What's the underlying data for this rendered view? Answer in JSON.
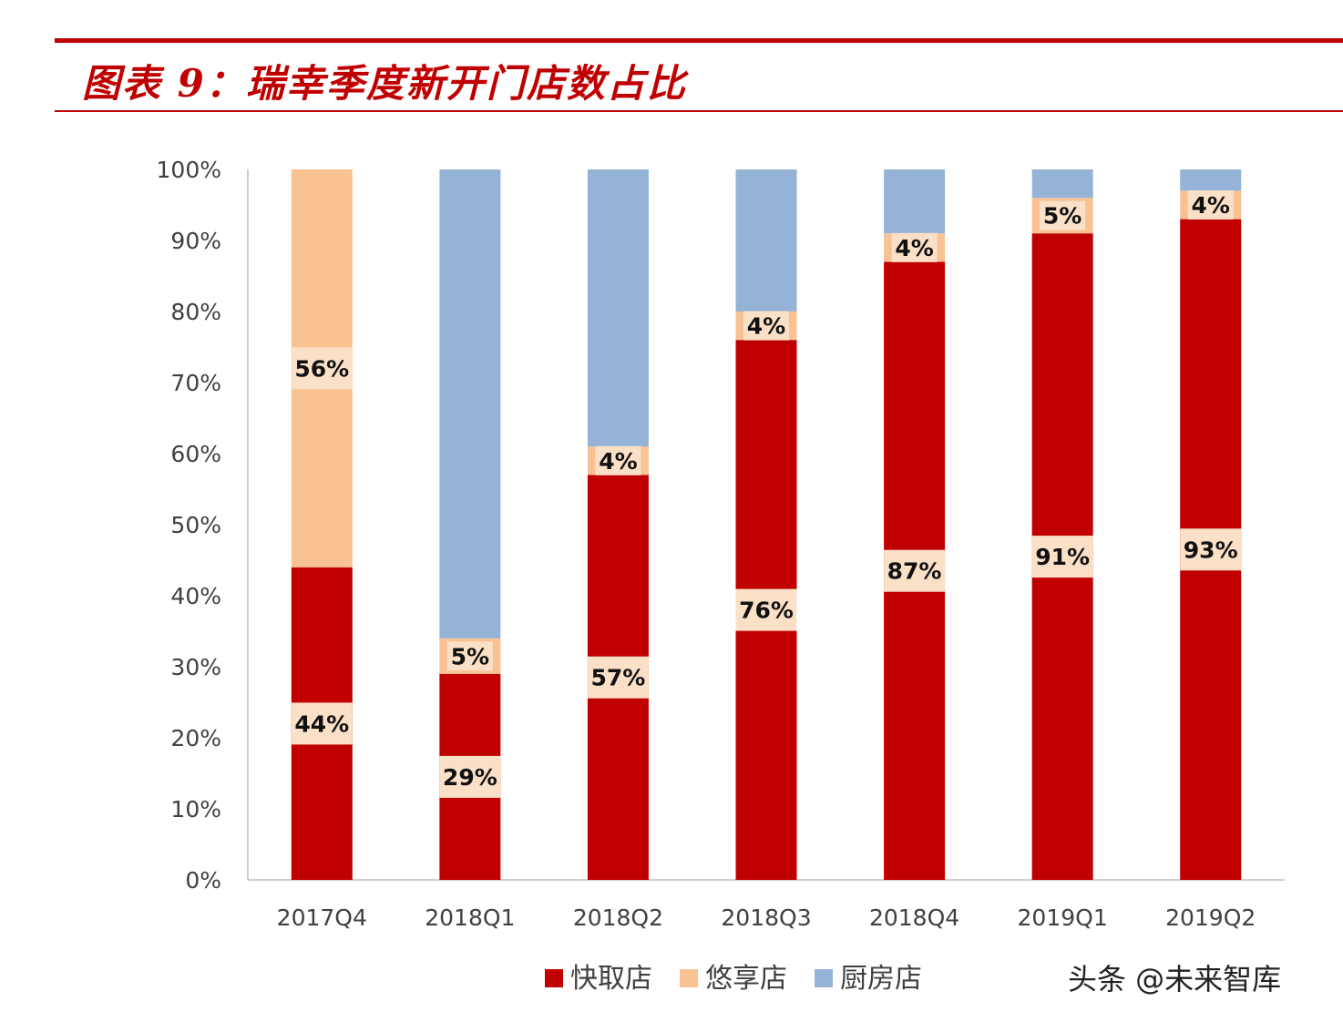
{
  "title": "图表 9：瑞幸季度新开门店数占比",
  "watermark": "头条 @未来智库",
  "colors": {
    "accent": "#c00000",
    "rule": "#c00000",
    "label_box": "#fbe0c8"
  },
  "chart_data": {
    "type": "bar",
    "stacked": true,
    "categories": [
      "2017Q4",
      "2018Q1",
      "2018Q2",
      "2018Q3",
      "2018Q4",
      "2019Q1",
      "2019Q2"
    ],
    "series": [
      {
        "name": "快取店",
        "color": "#c00000",
        "values": [
          44,
          29,
          57,
          76,
          87,
          91,
          93
        ],
        "labels": [
          "44%",
          "29%",
          "57%",
          "76%",
          "87%",
          "91%",
          "93%"
        ]
      },
      {
        "name": "悠享店",
        "color": "#f8c293",
        "values": [
          56,
          5,
          4,
          4,
          4,
          5,
          4
        ],
        "labels": [
          "56%",
          "5%",
          "4%",
          "4%",
          "4%",
          "5%",
          "4%"
        ]
      },
      {
        "name": "厨房店",
        "color": "#95b3d7",
        "values": [
          0,
          66,
          39,
          20,
          9,
          4,
          3.5
        ],
        "labels": [
          "",
          "",
          "",
          "",
          "",
          "",
          ""
        ]
      }
    ],
    "y_ticks": [
      "0%",
      "10%",
      "20%",
      "30%",
      "40%",
      "50%",
      "60%",
      "70%",
      "80%",
      "90%",
      "100%"
    ],
    "ylim": [
      0,
      100
    ],
    "grid": false,
    "legend": "bottom"
  }
}
